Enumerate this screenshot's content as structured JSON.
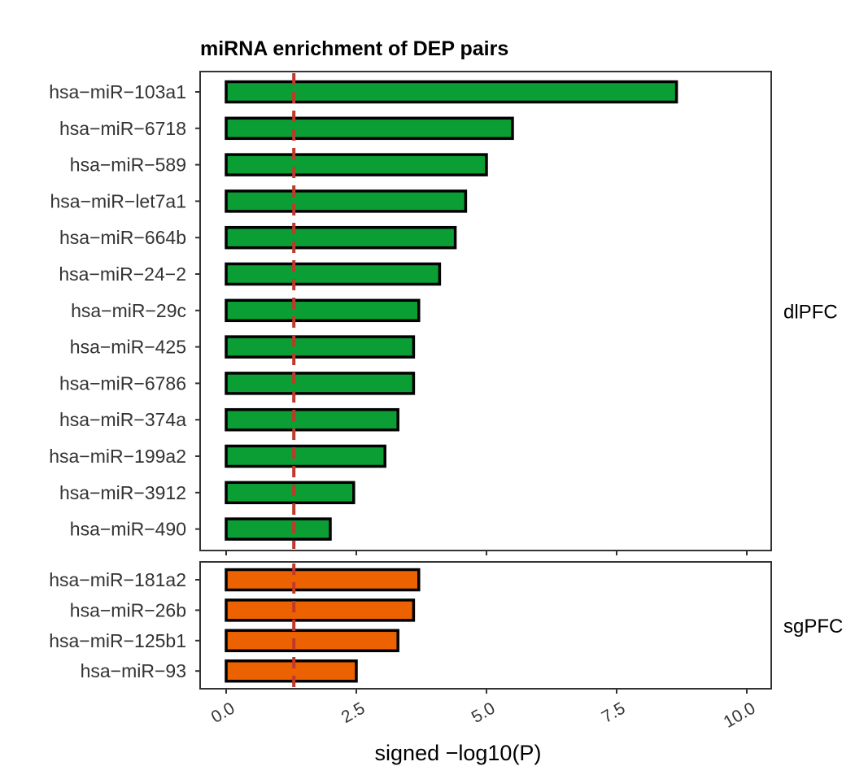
{
  "chart_data": {
    "type": "bar",
    "orientation": "horizontal",
    "title": "miRNA enrichment of DEP pairs",
    "xlabel": "signed −log10(P)",
    "xlim": [
      0,
      10
    ],
    "xticks": [
      "0.0",
      "2.5",
      "5.0",
      "7.5",
      "10.0"
    ],
    "reference_line": {
      "x": 1.3,
      "style": "dashed",
      "color": "#c0392b"
    },
    "panels": [
      {
        "facet_label": "dlPFC",
        "bar_color": "#0a9e34",
        "categories": [
          "hsa−miR−103a1",
          "hsa−miR−6718",
          "hsa−miR−589",
          "hsa−miR−let7a1",
          "hsa−miR−664b",
          "hsa−miR−24−2",
          "hsa−miR−29c",
          "hsa−miR−425",
          "hsa−miR−6786",
          "hsa−miR−374a",
          "hsa−miR−199a2",
          "hsa−miR−3912",
          "hsa−miR−490"
        ],
        "values": [
          8.65,
          5.5,
          5.0,
          4.6,
          4.4,
          4.1,
          3.7,
          3.6,
          3.6,
          3.3,
          3.05,
          2.45,
          2.0
        ]
      },
      {
        "facet_label": "sgPFC",
        "bar_color": "#ec6200",
        "categories": [
          "hsa−miR−181a2",
          "hsa−miR−26b",
          "hsa−miR−125b1",
          "hsa−miR−93"
        ],
        "values": [
          3.7,
          3.6,
          3.3,
          2.5
        ]
      }
    ]
  }
}
